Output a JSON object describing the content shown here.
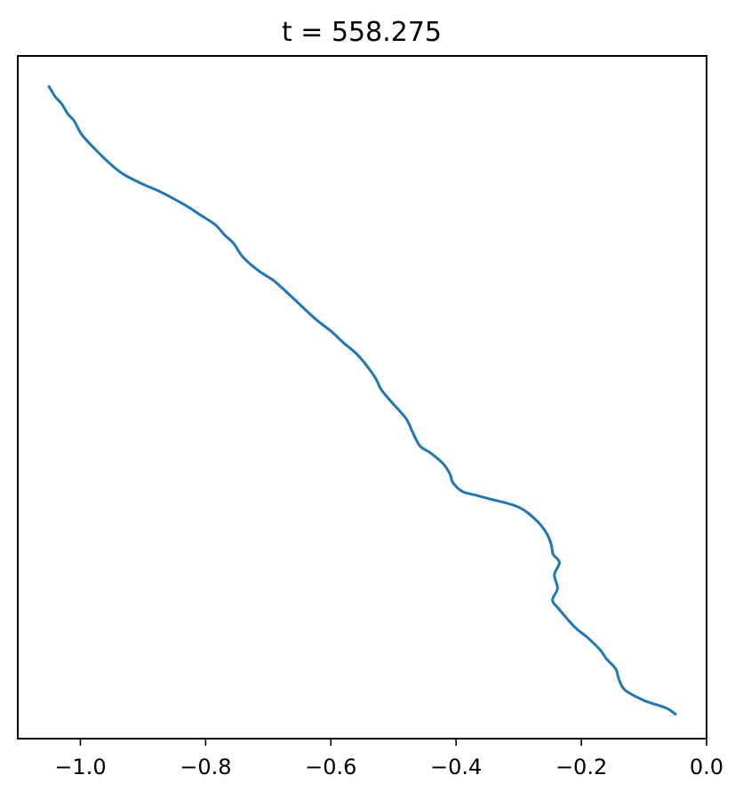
{
  "chart_data": {
    "type": "line",
    "title": "t = 558.275",
    "xlabel": "",
    "ylabel": "",
    "xlim": [
      -1.1,
      0.0
    ],
    "ylim": [
      0.0,
      1.0
    ],
    "grid": false,
    "legend": "none",
    "show_y_ticks": false,
    "x_ticks": [
      -1.0,
      -0.8,
      -0.6,
      -0.4,
      -0.2,
      0.0
    ],
    "x_tick_labels": [
      "−1.0",
      "−0.8",
      "−0.6",
      "−0.4",
      "−0.2",
      "0.0"
    ],
    "series": [
      {
        "color": "#1f77b4",
        "x": [
          -1.05,
          -1.04,
          -1.03,
          -1.02,
          -1.01,
          -0.998,
          -0.975,
          -0.95,
          -0.93,
          -0.9,
          -0.87,
          -0.83,
          -0.81,
          -0.785,
          -0.77,
          -0.755,
          -0.74,
          -0.715,
          -0.69,
          -0.66,
          -0.625,
          -0.6,
          -0.58,
          -0.555,
          -0.53,
          -0.52,
          -0.505,
          -0.48,
          -0.47,
          -0.458,
          -0.44,
          -0.42,
          -0.41,
          -0.405,
          -0.39,
          -0.37,
          -0.35,
          -0.3,
          -0.27,
          -0.255,
          -0.248,
          -0.245,
          -0.235,
          -0.243,
          -0.238,
          -0.246,
          -0.236,
          -0.21,
          -0.19,
          -0.17,
          -0.16,
          -0.145,
          -0.14,
          -0.13,
          -0.1,
          -0.065,
          -0.05
        ],
        "y": [
          0.955,
          0.94,
          0.93,
          0.915,
          0.905,
          0.885,
          0.862,
          0.84,
          0.826,
          0.812,
          0.8,
          0.78,
          0.768,
          0.753,
          0.738,
          0.725,
          0.705,
          0.685,
          0.67,
          0.645,
          0.615,
          0.597,
          0.58,
          0.56,
          0.53,
          0.512,
          0.495,
          0.469,
          0.45,
          0.429,
          0.418,
          0.402,
          0.388,
          0.375,
          0.362,
          0.357,
          0.352,
          0.339,
          0.318,
          0.3,
          0.284,
          0.27,
          0.258,
          0.24,
          0.22,
          0.203,
          0.19,
          0.163,
          0.148,
          0.13,
          0.117,
          0.102,
          0.087,
          0.071,
          0.056,
          0.045,
          0.036
        ]
      }
    ]
  }
}
